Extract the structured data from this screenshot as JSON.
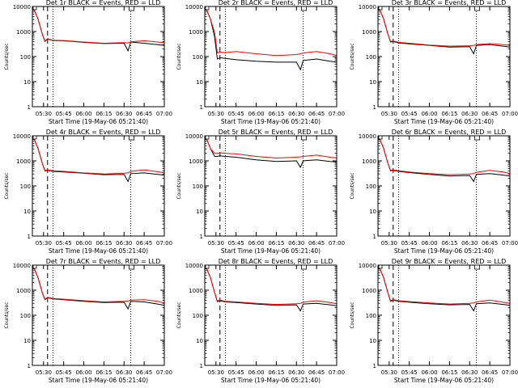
{
  "chart_data": [
    {
      "type": "line",
      "title": "Det 1r BLACK = Events, RED = LLD",
      "ylabel": "Counts/sec",
      "xlabel": "Start Time (19-May-06 05:21:40)",
      "x": [
        "05:21",
        "05:26",
        "05:29",
        "05:31",
        "05:33",
        "05:37",
        "05:45",
        "06:00",
        "06:15",
        "06:30",
        "06:33",
        "06:35",
        "06:45",
        "06:55",
        "07:00"
      ],
      "series": [
        {
          "name": "BLACK",
          "color": "#000000",
          "values": [
            14000,
            3000,
            800,
            400,
            500,
            440,
            430,
            370,
            330,
            340,
            170,
            380,
            340,
            300,
            280
          ]
        },
        {
          "name": "RED",
          "color": "#ff0000",
          "values": [
            14000,
            3000,
            800,
            420,
            520,
            450,
            440,
            380,
            340,
            360,
            350,
            390,
            430,
            380,
            360
          ]
        }
      ]
    },
    {
      "type": "line",
      "title": "Det 2r BLACK = Events, RED = LLD",
      "ylabel": "Counts/sec",
      "xlabel": "Start Time (19-May-06 05:21:40)",
      "x": [
        "05:21",
        "05:26",
        "05:29",
        "05:31",
        "05:33",
        "05:37",
        "05:45",
        "06:00",
        "06:15",
        "06:30",
        "06:33",
        "06:35",
        "06:45",
        "06:55",
        "07:00"
      ],
      "series": [
        {
          "name": "BLACK",
          "color": "#000000",
          "values": [
            14000,
            3000,
            600,
            80,
            90,
            85,
            75,
            65,
            60,
            60,
            30,
            70,
            80,
            65,
            60
          ]
        },
        {
          "name": "RED",
          "color": "#ff0000",
          "values": [
            14000,
            3000,
            900,
            140,
            150,
            145,
            160,
            130,
            110,
            120,
            130,
            140,
            160,
            130,
            110
          ]
        }
      ]
    },
    {
      "type": "line",
      "title": "Det 3r BLACK = Events, RED = LLD",
      "ylabel": "Counts/sec",
      "xlabel": "Start Time (19-May-06 05:21:40)",
      "x": [
        "05:21",
        "05:26",
        "05:29",
        "05:31",
        "05:33",
        "05:37",
        "05:45",
        "06:00",
        "06:15",
        "06:30",
        "06:33",
        "06:35",
        "06:45",
        "06:55",
        "07:00"
      ],
      "series": [
        {
          "name": "BLACK",
          "color": "#000000",
          "values": [
            14000,
            3000,
            800,
            380,
            400,
            350,
            320,
            280,
            240,
            250,
            130,
            280,
            300,
            260,
            240
          ]
        },
        {
          "name": "RED",
          "color": "#ff0000",
          "values": [
            14000,
            3000,
            800,
            400,
            420,
            370,
            340,
            290,
            260,
            270,
            280,
            300,
            330,
            300,
            280
          ]
        }
      ]
    },
    {
      "type": "line",
      "title": "Det 4r BLACK = Events, RED = LLD",
      "ylabel": "Counts/sec",
      "xlabel": "Start Time (19-May-06 05:21:40)",
      "x": [
        "05:21",
        "05:26",
        "05:29",
        "05:31",
        "05:33",
        "05:37",
        "05:45",
        "06:00",
        "06:15",
        "06:30",
        "06:33",
        "06:35",
        "06:45",
        "06:55",
        "07:00"
      ],
      "series": [
        {
          "name": "BLACK",
          "color": "#000000",
          "values": [
            14000,
            3000,
            800,
            400,
            420,
            380,
            360,
            320,
            280,
            290,
            150,
            310,
            330,
            290,
            270
          ]
        },
        {
          "name": "RED",
          "color": "#ff0000",
          "values": [
            14000,
            3000,
            800,
            420,
            440,
            400,
            380,
            330,
            300,
            320,
            330,
            380,
            440,
            370,
            330
          ]
        }
      ]
    },
    {
      "type": "line",
      "title": "Det 5r BLACK = Events, RED = LLD",
      "ylabel": "Counts/sec",
      "xlabel": "Start Time (19-May-06 05:21:40)",
      "x": [
        "05:21",
        "05:26",
        "05:29",
        "05:31",
        "05:33",
        "05:37",
        "05:45",
        "06:00",
        "06:15",
        "06:30",
        "06:33",
        "06:35",
        "06:45",
        "06:55",
        "07:00"
      ],
      "series": [
        {
          "name": "BLACK",
          "color": "#000000",
          "values": [
            14000,
            3000,
            1500,
            1500,
            1600,
            1500,
            1400,
            1100,
            950,
            1000,
            550,
            1000,
            1100,
            950,
            900
          ]
        },
        {
          "name": "RED",
          "color": "#ff0000",
          "values": [
            14000,
            3000,
            2000,
            2000,
            2100,
            2000,
            1900,
            1500,
            1300,
            1400,
            1450,
            1500,
            1700,
            1400,
            1300
          ]
        }
      ]
    },
    {
      "type": "line",
      "title": "Det 6r BLACK = Events, RED = LLD",
      "ylabel": "Counts/sec",
      "xlabel": "Start Time (19-May-06 05:21:40)",
      "x": [
        "05:21",
        "05:26",
        "05:29",
        "05:31",
        "05:33",
        "05:37",
        "05:45",
        "06:00",
        "06:15",
        "06:30",
        "06:33",
        "06:35",
        "06:45",
        "06:55",
        "07:00"
      ],
      "series": [
        {
          "name": "BLACK",
          "color": "#000000",
          "values": [
            14000,
            3000,
            800,
            400,
            420,
            380,
            340,
            290,
            250,
            260,
            150,
            290,
            310,
            270,
            250
          ]
        },
        {
          "name": "RED",
          "color": "#ff0000",
          "values": [
            14000,
            3000,
            800,
            420,
            440,
            400,
            360,
            310,
            280,
            300,
            310,
            350,
            420,
            360,
            310
          ]
        }
      ]
    },
    {
      "type": "line",
      "title": "Det 7r BLACK = Events, RED = LLD",
      "ylabel": "Counts/sec",
      "xlabel": "Start Time (19-May-06 05:21:40)",
      "x": [
        "05:21",
        "05:26",
        "05:29",
        "05:31",
        "05:33",
        "05:37",
        "05:45",
        "06:00",
        "06:15",
        "06:30",
        "06:33",
        "06:35",
        "06:45",
        "06:55",
        "07:00"
      ],
      "series": [
        {
          "name": "BLACK",
          "color": "#000000",
          "values": [
            14000,
            3000,
            800,
            420,
            500,
            450,
            420,
            360,
            320,
            330,
            180,
            360,
            340,
            280,
            250
          ]
        },
        {
          "name": "RED",
          "color": "#ff0000",
          "values": [
            14000,
            3000,
            800,
            440,
            520,
            470,
            440,
            380,
            340,
            360,
            370,
            400,
            420,
            360,
            310
          ]
        }
      ]
    },
    {
      "type": "line",
      "title": "Det 8r BLACK = Events, RED = LLD",
      "ylabel": "Counts/sec",
      "xlabel": "Start Time (19-May-06 05:21:40)",
      "x": [
        "05:21",
        "05:26",
        "05:29",
        "05:31",
        "05:33",
        "05:37",
        "05:45",
        "06:00",
        "06:15",
        "06:30",
        "06:33",
        "06:35",
        "06:45",
        "06:55",
        "07:00"
      ],
      "series": [
        {
          "name": "BLACK",
          "color": "#000000",
          "values": [
            14000,
            3000,
            800,
            350,
            380,
            340,
            320,
            280,
            250,
            260,
            150,
            280,
            300,
            260,
            240
          ]
        },
        {
          "name": "RED",
          "color": "#ff0000",
          "values": [
            14000,
            3000,
            800,
            370,
            400,
            360,
            340,
            300,
            270,
            290,
            300,
            330,
            380,
            320,
            290
          ]
        }
      ]
    },
    {
      "type": "line",
      "title": "Det 9r BLACK = Events, RED = LLD",
      "ylabel": "Counts/sec",
      "xlabel": "Start Time (19-May-06 05:21:40)",
      "x": [
        "05:21",
        "05:26",
        "05:29",
        "05:31",
        "05:33",
        "05:37",
        "05:45",
        "06:00",
        "06:15",
        "06:30",
        "06:33",
        "06:35",
        "06:45",
        "06:55",
        "07:00"
      ],
      "series": [
        {
          "name": "BLACK",
          "color": "#000000",
          "values": [
            14000,
            3000,
            800,
            360,
            400,
            360,
            330,
            290,
            260,
            270,
            150,
            290,
            310,
            270,
            250
          ]
        },
        {
          "name": "RED",
          "color": "#ff0000",
          "values": [
            14000,
            3000,
            800,
            380,
            420,
            380,
            350,
            310,
            280,
            300,
            310,
            340,
            400,
            330,
            300
          ]
        }
      ]
    }
  ],
  "axes": {
    "y_scale": "log",
    "ylim": [
      1,
      10000
    ],
    "y_ticks": [
      "1",
      "10",
      "100",
      "1000",
      "10000"
    ],
    "xlim": [
      "05:21:40",
      "07:00"
    ],
    "x_ticks": [
      "05:30",
      "05:45",
      "06:00",
      "06:15",
      "06:30",
      "06:45",
      "07:00"
    ],
    "dashed_marker_time": "05:33",
    "dotted_marker_times": [
      "05:37",
      "06:35"
    ]
  }
}
